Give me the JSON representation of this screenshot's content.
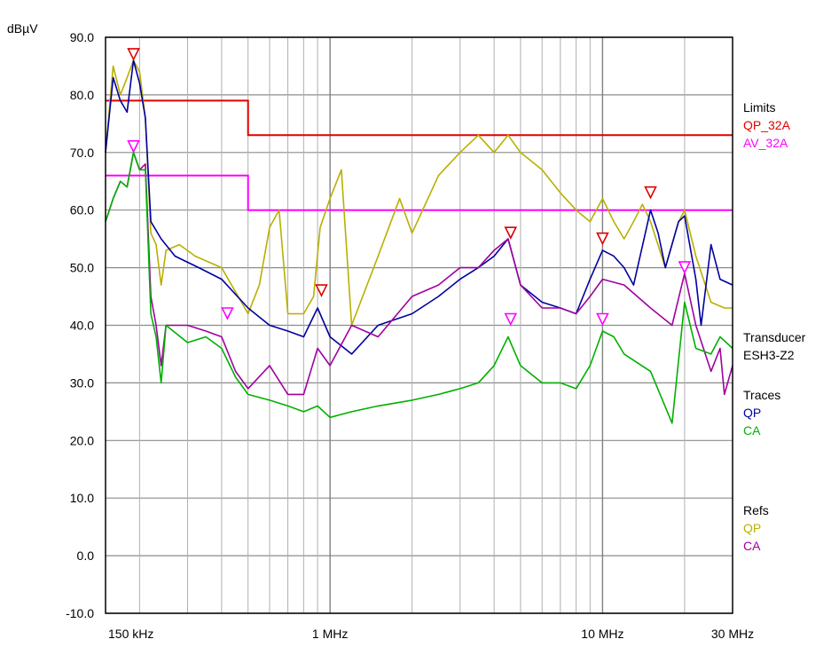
{
  "chart_data": {
    "type": "line",
    "title": "",
    "xlabel": "",
    "ylabel": "dBµV",
    "xscale": "log",
    "xlim_hz": [
      150000,
      30000000
    ],
    "ylim": [
      -10,
      90
    ],
    "grid": true,
    "y_ticks": [
      "90.0",
      "80.0",
      "70.0",
      "60.0",
      "50.0",
      "40.0",
      "30.0",
      "20.0",
      "10.0",
      "0.0",
      "-10.0"
    ],
    "x_tick_labels": [
      {
        "label": "150 kHz",
        "hz": 150000
      },
      {
        "label": "1 MHz",
        "hz": 1000000
      },
      {
        "label": "10 MHz",
        "hz": 10000000
      },
      {
        "label": "30 MHz",
        "hz": 30000000
      }
    ],
    "legend": {
      "limits": {
        "heading": "Limits",
        "items": [
          {
            "name": "QP_32A",
            "color": "#e00000"
          },
          {
            "name": "AV_32A",
            "color": "#ff00ff"
          }
        ]
      },
      "transducer": {
        "heading": "Transducer",
        "name": "ESH3-Z2"
      },
      "traces": {
        "heading": "Traces",
        "items": [
          {
            "name": "QP",
            "color": "#0000a0"
          },
          {
            "name": "CA",
            "color": "#00b000"
          }
        ]
      },
      "refs": {
        "heading": "Refs",
        "items": [
          {
            "name": "QP",
            "color": "#b8b000"
          },
          {
            "name": "CA",
            "color": "#a000a0"
          }
        ]
      }
    },
    "limits": [
      {
        "name": "QP_32A",
        "color": "#e00000",
        "points": [
          [
            150000,
            79
          ],
          [
            500000,
            79
          ],
          [
            500000,
            73
          ],
          [
            30000000,
            73
          ]
        ]
      },
      {
        "name": "AV_32A",
        "color": "#ff00ff",
        "points": [
          [
            150000,
            66
          ],
          [
            500000,
            66
          ],
          [
            500000,
            60
          ],
          [
            30000000,
            60
          ]
        ]
      }
    ],
    "series": [
      {
        "name": "QP",
        "group": "Refs",
        "color": "#b8b000",
        "points": [
          [
            150000,
            70
          ],
          [
            160000,
            85
          ],
          [
            170000,
            80
          ],
          [
            180000,
            83
          ],
          [
            190000,
            86
          ],
          [
            200000,
            84
          ],
          [
            210000,
            76
          ],
          [
            220000,
            56
          ],
          [
            230000,
            54
          ],
          [
            240000,
            47
          ],
          [
            250000,
            53
          ],
          [
            280000,
            54
          ],
          [
            320000,
            52
          ],
          [
            400000,
            50
          ],
          [
            500000,
            42
          ],
          [
            550000,
            47
          ],
          [
            600000,
            57
          ],
          [
            650000,
            60
          ],
          [
            700000,
            42
          ],
          [
            800000,
            42
          ],
          [
            870000,
            45
          ],
          [
            920000,
            57
          ],
          [
            1000000,
            62
          ],
          [
            1100000,
            67
          ],
          [
            1200000,
            40
          ],
          [
            1500000,
            52
          ],
          [
            1800000,
            62
          ],
          [
            2000000,
            56
          ],
          [
            2500000,
            66
          ],
          [
            3000000,
            70
          ],
          [
            3500000,
            73
          ],
          [
            4000000,
            70
          ],
          [
            4500000,
            73
          ],
          [
            5000000,
            70
          ],
          [
            6000000,
            67
          ],
          [
            7000000,
            63
          ],
          [
            8000000,
            60
          ],
          [
            9000000,
            58
          ],
          [
            10000000,
            62
          ],
          [
            11000000,
            58
          ],
          [
            12000000,
            55
          ],
          [
            13000000,
            58
          ],
          [
            14000000,
            61
          ],
          [
            15000000,
            58
          ],
          [
            17000000,
            50
          ],
          [
            19000000,
            58
          ],
          [
            20000000,
            60
          ],
          [
            22000000,
            52
          ],
          [
            25000000,
            44
          ],
          [
            28000000,
            43
          ],
          [
            30000000,
            43
          ]
        ]
      },
      {
        "name": "QP",
        "group": "Traces",
        "color": "#0000a0",
        "points": [
          [
            150000,
            70
          ],
          [
            160000,
            83
          ],
          [
            170000,
            79
          ],
          [
            180000,
            77
          ],
          [
            190000,
            86
          ],
          [
            200000,
            82
          ],
          [
            210000,
            76
          ],
          [
            220000,
            58
          ],
          [
            240000,
            55
          ],
          [
            270000,
            52
          ],
          [
            330000,
            50
          ],
          [
            400000,
            48
          ],
          [
            500000,
            43
          ],
          [
            600000,
            40
          ],
          [
            700000,
            39
          ],
          [
            800000,
            38
          ],
          [
            900000,
            43
          ],
          [
            1000000,
            38
          ],
          [
            1200000,
            35
          ],
          [
            1500000,
            40
          ],
          [
            2000000,
            42
          ],
          [
            2500000,
            45
          ],
          [
            3000000,
            48
          ],
          [
            3500000,
            50
          ],
          [
            4000000,
            52
          ],
          [
            4500000,
            55
          ],
          [
            5000000,
            47
          ],
          [
            6000000,
            44
          ],
          [
            7000000,
            43
          ],
          [
            8000000,
            42
          ],
          [
            9000000,
            48
          ],
          [
            10000000,
            53
          ],
          [
            11000000,
            52
          ],
          [
            12000000,
            50
          ],
          [
            13000000,
            47
          ],
          [
            15000000,
            60
          ],
          [
            16000000,
            56
          ],
          [
            17000000,
            50
          ],
          [
            19000000,
            58
          ],
          [
            20000000,
            59
          ],
          [
            22000000,
            48
          ],
          [
            23000000,
            40
          ],
          [
            25000000,
            54
          ],
          [
            27000000,
            48
          ],
          [
            30000000,
            47
          ]
        ]
      },
      {
        "name": "CA",
        "group": "Refs",
        "color": "#a000a0",
        "points": [
          [
            150000,
            58
          ],
          [
            160000,
            62
          ],
          [
            170000,
            65
          ],
          [
            180000,
            64
          ],
          [
            190000,
            70
          ],
          [
            200000,
            67
          ],
          [
            210000,
            68
          ],
          [
            220000,
            45
          ],
          [
            230000,
            40
          ],
          [
            240000,
            33
          ],
          [
            250000,
            40
          ],
          [
            300000,
            40
          ],
          [
            350000,
            39
          ],
          [
            400000,
            38
          ],
          [
            450000,
            32
          ],
          [
            500000,
            29
          ],
          [
            600000,
            33
          ],
          [
            700000,
            28
          ],
          [
            800000,
            28
          ],
          [
            900000,
            36
          ],
          [
            1000000,
            33
          ],
          [
            1200000,
            40
          ],
          [
            1500000,
            38
          ],
          [
            2000000,
            45
          ],
          [
            2500000,
            47
          ],
          [
            3000000,
            50
          ],
          [
            3500000,
            50
          ],
          [
            4000000,
            53
          ],
          [
            4500000,
            55
          ],
          [
            5000000,
            47
          ],
          [
            6000000,
            43
          ],
          [
            7000000,
            43
          ],
          [
            8000000,
            42
          ],
          [
            9000000,
            45
          ],
          [
            10000000,
            48
          ],
          [
            12000000,
            47
          ],
          [
            15000000,
            43
          ],
          [
            18000000,
            40
          ],
          [
            20000000,
            49
          ],
          [
            22000000,
            40
          ],
          [
            25000000,
            32
          ],
          [
            27000000,
            36
          ],
          [
            28000000,
            28
          ],
          [
            30000000,
            33
          ]
        ]
      },
      {
        "name": "CA",
        "group": "Traces",
        "color": "#00b000",
        "points": [
          [
            150000,
            58
          ],
          [
            160000,
            62
          ],
          [
            170000,
            65
          ],
          [
            180000,
            64
          ],
          [
            190000,
            70
          ],
          [
            200000,
            67
          ],
          [
            210000,
            67
          ],
          [
            220000,
            42
          ],
          [
            230000,
            38
          ],
          [
            240000,
            30
          ],
          [
            250000,
            40
          ],
          [
            300000,
            37
          ],
          [
            350000,
            38
          ],
          [
            400000,
            36
          ],
          [
            450000,
            31
          ],
          [
            500000,
            28
          ],
          [
            600000,
            27
          ],
          [
            700000,
            26
          ],
          [
            800000,
            25
          ],
          [
            900000,
            26
          ],
          [
            1000000,
            24
          ],
          [
            1200000,
            25
          ],
          [
            1500000,
            26
          ],
          [
            2000000,
            27
          ],
          [
            2500000,
            28
          ],
          [
            3000000,
            29
          ],
          [
            3500000,
            30
          ],
          [
            4000000,
            33
          ],
          [
            4500000,
            38
          ],
          [
            5000000,
            33
          ],
          [
            6000000,
            30
          ],
          [
            7000000,
            30
          ],
          [
            8000000,
            29
          ],
          [
            9000000,
            33
          ],
          [
            10000000,
            39
          ],
          [
            11000000,
            38
          ],
          [
            12000000,
            35
          ],
          [
            15000000,
            32
          ],
          [
            18000000,
            23
          ],
          [
            20000000,
            44
          ],
          [
            22000000,
            36
          ],
          [
            25000000,
            35
          ],
          [
            27000000,
            38
          ],
          [
            30000000,
            36
          ]
        ]
      }
    ],
    "markers": [
      {
        "type": "qp",
        "hz": 190000,
        "y": 86,
        "color": "#e00000"
      },
      {
        "type": "qp",
        "hz": 930000,
        "y": 45,
        "color": "#e00000"
      },
      {
        "type": "qp",
        "hz": 4600000,
        "y": 55,
        "color": "#e00000"
      },
      {
        "type": "qp",
        "hz": 10000000,
        "y": 54,
        "color": "#e00000"
      },
      {
        "type": "qp",
        "hz": 15000000,
        "y": 62,
        "color": "#e00000"
      },
      {
        "type": "av",
        "hz": 190000,
        "y": 70,
        "color": "#ff00ff"
      },
      {
        "type": "av",
        "hz": 420000,
        "y": 41,
        "color": "#ff00ff"
      },
      {
        "type": "av",
        "hz": 4600000,
        "y": 40,
        "color": "#ff00ff"
      },
      {
        "type": "av",
        "hz": 10000000,
        "y": 40,
        "color": "#ff00ff"
      },
      {
        "type": "av",
        "hz": 20000000,
        "y": 49,
        "color": "#ff00ff"
      }
    ]
  }
}
